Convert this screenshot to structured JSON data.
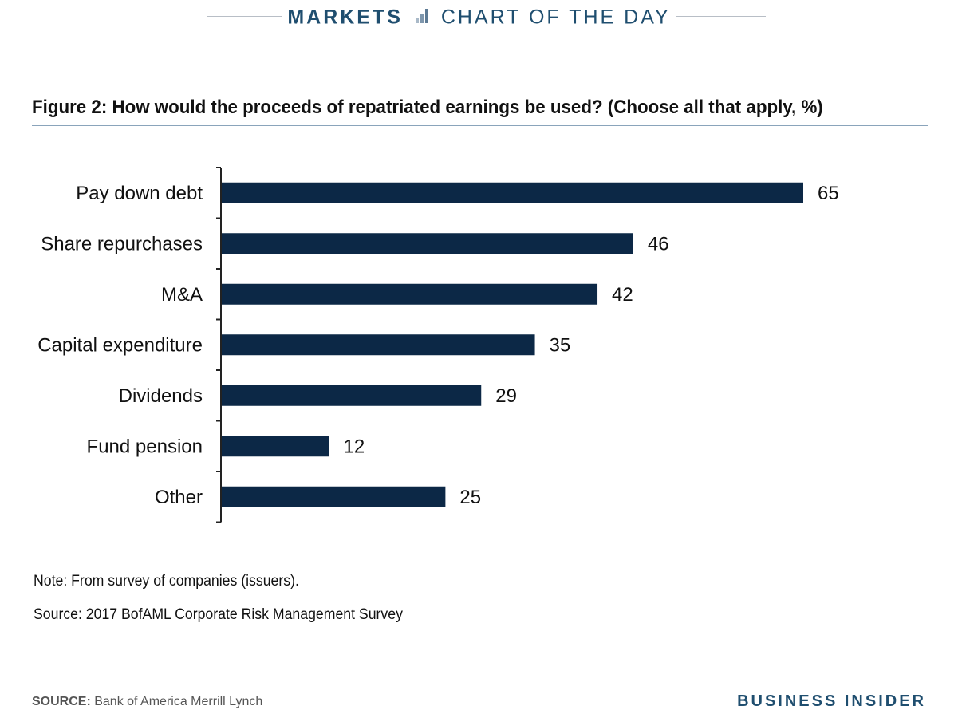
{
  "header": {
    "section": "MARKETS",
    "series": "CHART OF THE DAY",
    "icon": "bar-chart-icon",
    "color": "#1f4e6f"
  },
  "figure_title": "Figure 2: How would the proceeds of repatriated earnings be used? (Choose all that apply, %)",
  "chart_data": {
    "type": "bar",
    "orientation": "horizontal",
    "categories": [
      "Pay down debt",
      "Share repurchases",
      "M&A",
      "Capital expenditure",
      "Dividends",
      "Fund pension",
      "Other"
    ],
    "values": [
      65,
      46,
      42,
      35,
      29,
      12,
      25
    ],
    "xlim": [
      0,
      65
    ],
    "bar_color": "#0c2846",
    "grid": false,
    "data_labels": true
  },
  "note": "Note: From survey of companies (issuers).",
  "source_note": "Source: 2017 BofAML Corporate Risk Management Survey",
  "footer": {
    "source_label": "SOURCE:",
    "source_text": "Bank of America Merrill Lynch",
    "brand": "BUSINESS INSIDER"
  }
}
